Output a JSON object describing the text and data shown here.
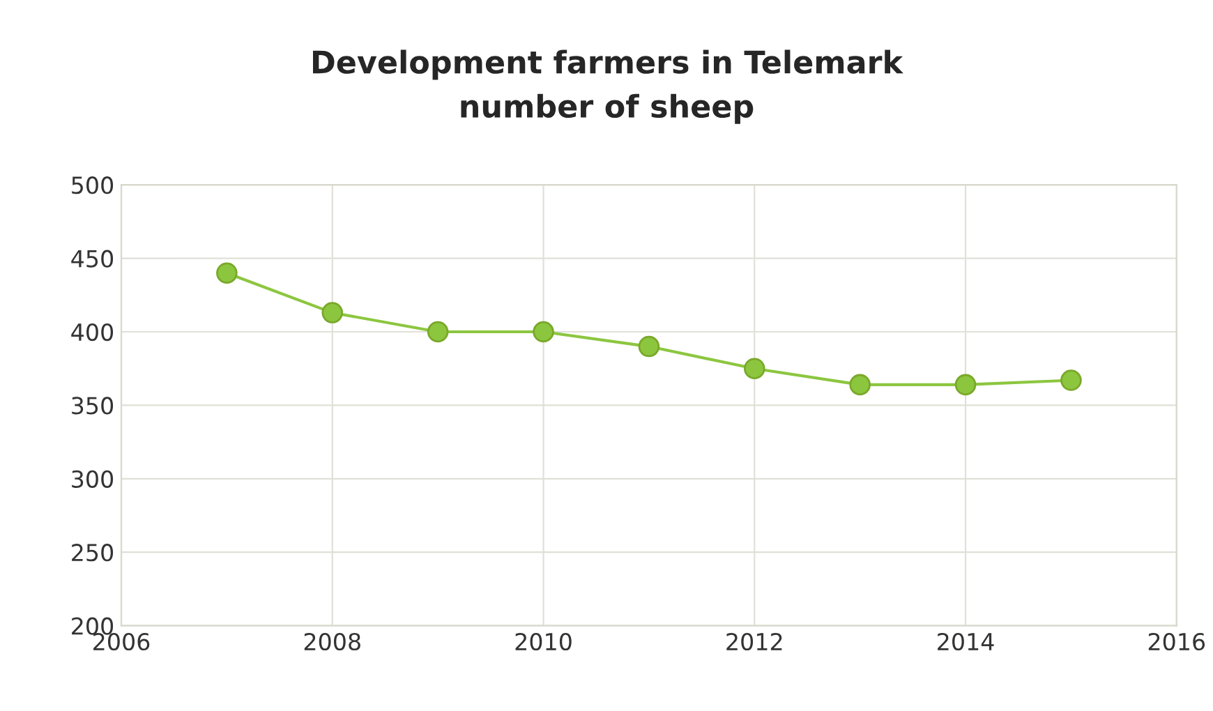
{
  "chart_data": {
    "type": "line",
    "title": "Development farmers in Telemark\nnumber of sheep",
    "x": [
      2007,
      2008,
      2009,
      2010,
      2011,
      2012,
      2013,
      2014,
      2015
    ],
    "series": [
      {
        "color": "#8cc63f",
        "values": [
          440,
          413,
          400,
          400,
          390,
          375,
          364,
          364,
          367
        ]
      }
    ],
    "xlim": [
      2006,
      2016
    ],
    "xticks": [
      2006,
      2008,
      2010,
      2012,
      2014,
      2016
    ],
    "ylim": [
      200,
      500
    ],
    "yticks": [
      200,
      250,
      300,
      350,
      400,
      450,
      500
    ],
    "grid": true,
    "marker": "circle",
    "line_style": "solid"
  }
}
